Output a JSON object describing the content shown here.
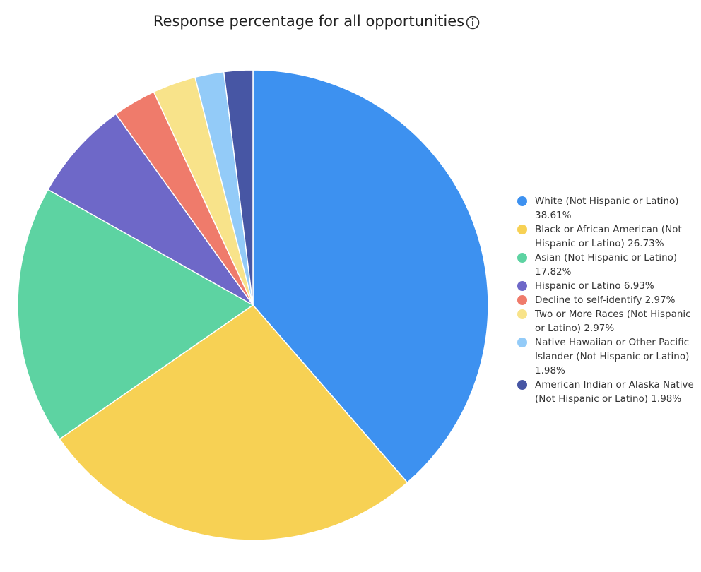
{
  "chart_data": {
    "type": "pie",
    "title": "Response percentage for all opportunities",
    "categories": [
      "White (Not Hispanic or Latino)",
      "Black or African American (Not Hispanic or Latino)",
      "Asian (Not Hispanic or Latino)",
      "Hispanic or Latino",
      "Decline to self-identify",
      "Two or More Races (Not Hispanic or Latino)",
      "Native Hawaiian or Other Pacific Islander (Not Hispanic or Latino)",
      "American Indian or Alaska Native (Not Hispanic or Latino)"
    ],
    "values": [
      38.61,
      26.73,
      17.82,
      6.93,
      2.97,
      2.97,
      1.98,
      1.98
    ],
    "value_labels": [
      "38.61%",
      "26.73%",
      "17.82%",
      "6.93%",
      "2.97%",
      "2.97%",
      "1.98%",
      "1.98%"
    ],
    "colors": [
      "#3d91f0",
      "#f7d154",
      "#5dd3a2",
      "#6e68c8",
      "#ef7b6b",
      "#f8e38a",
      "#93cbf8",
      "#4756a4"
    ],
    "legend": "right"
  }
}
